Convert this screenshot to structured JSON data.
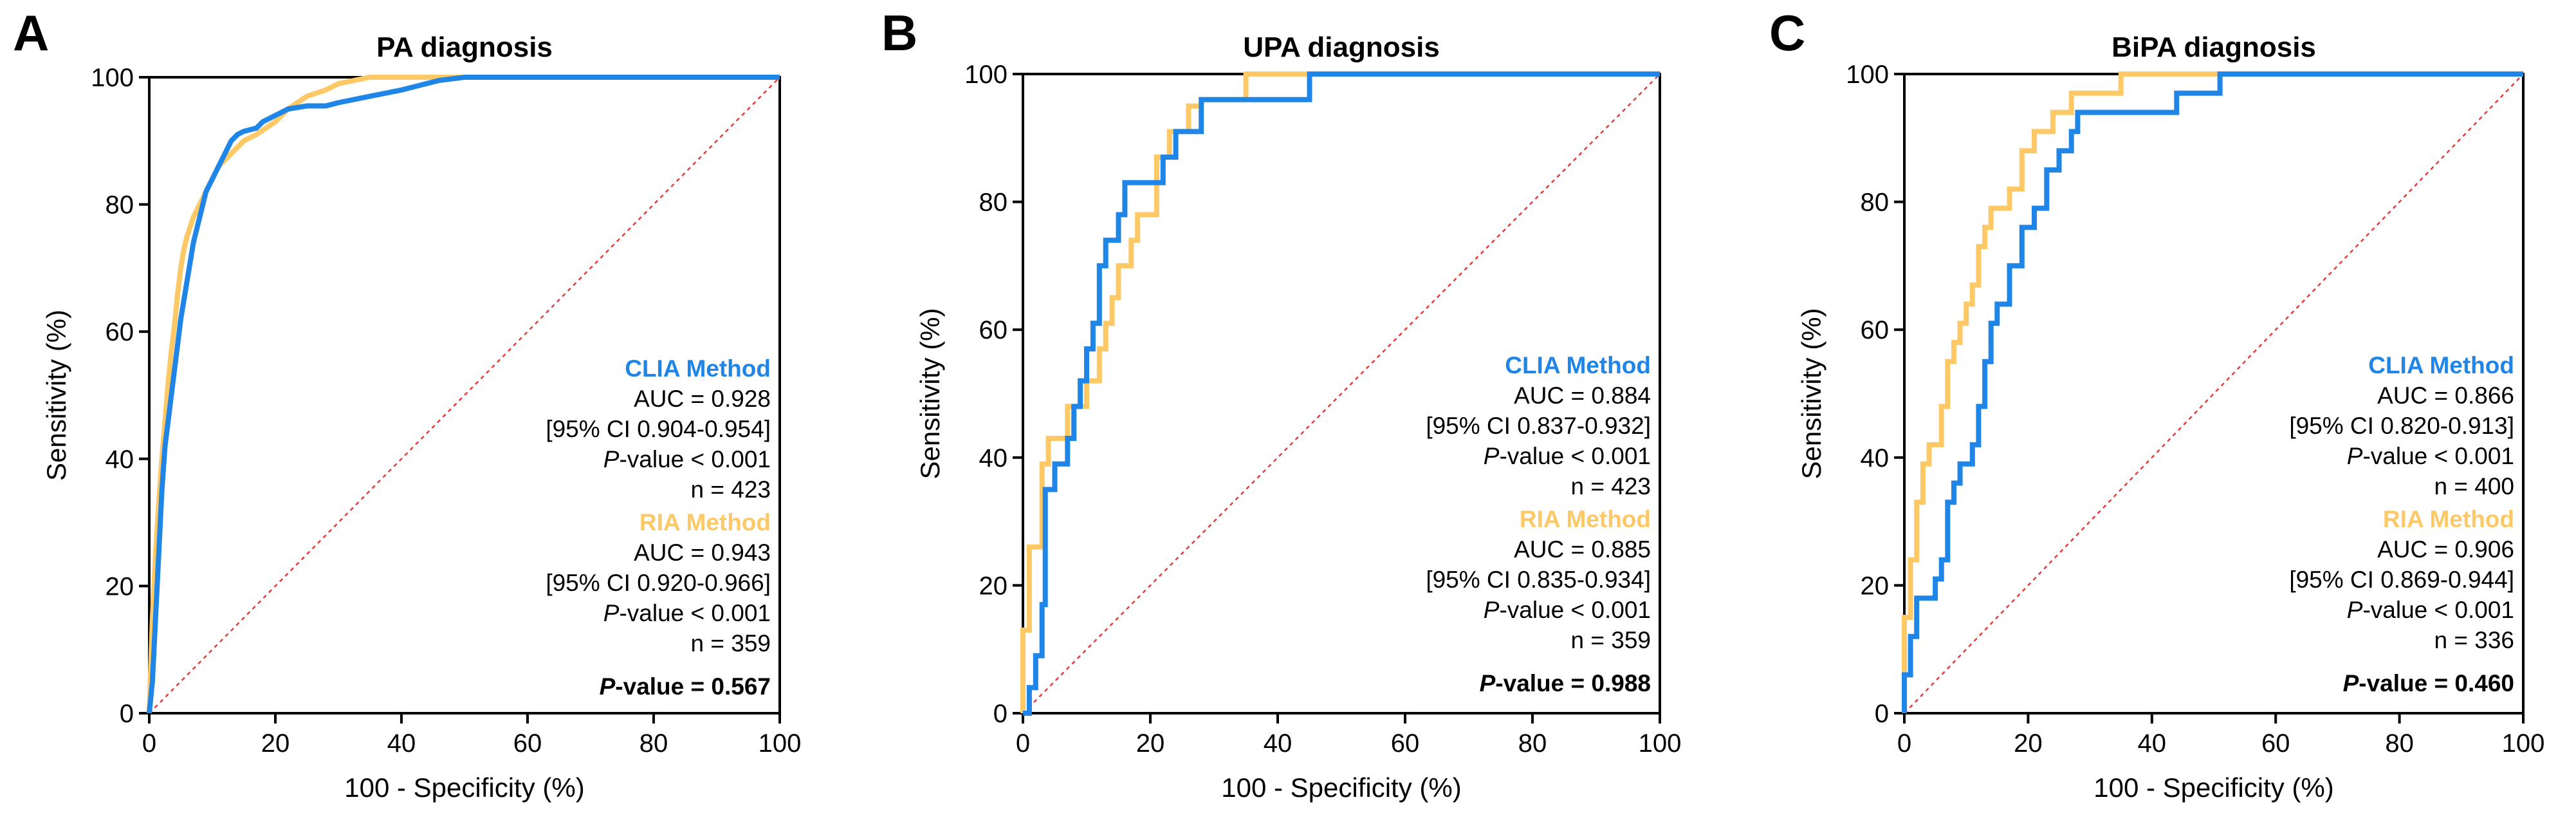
{
  "colors": {
    "clia": "#1f86e8",
    "ria": "#fdc866",
    "diagonal": "#e63b3b",
    "axis": "#000000"
  },
  "chart_data": [
    {
      "type": "line",
      "panel_label": "A",
      "title": "PA diagnosis",
      "xlabel": "100 - Specificity (%)",
      "ylabel": "Sensitivity (%)",
      "xlim": [
        0,
        100
      ],
      "ylim": [
        0,
        100
      ],
      "xticks": [
        "0",
        "20",
        "40",
        "60",
        "80",
        "100"
      ],
      "yticks": [
        "0",
        "20",
        "40",
        "60",
        "80",
        "100"
      ],
      "grid": false,
      "series": [
        {
          "name": "CLIA Method",
          "x": [
            0,
            0.5,
            1,
            1.5,
            2,
            2.5,
            3,
            3.5,
            4,
            4.5,
            5,
            5.5,
            6,
            6.5,
            7,
            7.5,
            8,
            8.5,
            9,
            10,
            11,
            12,
            13,
            14,
            15,
            17,
            18,
            20,
            22,
            25,
            28,
            30,
            35,
            40,
            46,
            50,
            60,
            80,
            100
          ],
          "y": [
            0,
            5,
            15,
            25,
            35,
            42,
            46,
            50,
            54,
            58,
            62,
            65,
            68,
            71,
            74,
            76,
            78,
            80,
            82,
            84,
            86,
            88,
            90,
            91,
            91.5,
            92,
            93,
            94,
            95,
            95.5,
            95.5,
            96,
            97,
            98,
            99.5,
            100,
            100,
            100,
            100
          ]
        },
        {
          "name": "RIA Method",
          "x": [
            0,
            0.5,
            1,
            1.5,
            2,
            2.5,
            3,
            3.5,
            4,
            4.5,
            5,
            5.5,
            6,
            7,
            8,
            9,
            10,
            11,
            12,
            14,
            15,
            17,
            20,
            22,
            25,
            28,
            30,
            35,
            40,
            50,
            60,
            80,
            100
          ],
          "y": [
            0,
            15,
            25,
            33,
            40,
            46,
            52,
            57,
            61,
            66,
            70,
            73,
            75,
            78,
            80,
            82,
            84,
            86,
            87,
            89,
            90,
            91,
            93,
            95,
            97,
            98,
            99,
            100,
            100,
            100,
            100,
            100,
            100
          ]
        }
      ],
      "diagonal": {
        "x": [
          0,
          100
        ],
        "y": [
          0,
          100
        ]
      },
      "annotations": {
        "clia": {
          "header": "CLIA Method",
          "auc": "AUC = 0.928",
          "ci": "[95% CI 0.904-0.954]",
          "p_italic": "P",
          "p_rest": "-value < 0.001",
          "n": "n = 423"
        },
        "ria": {
          "header": "RIA Method",
          "auc": "AUC = 0.943",
          "ci": "[95% CI 0.920-0.966]",
          "p_italic": "P",
          "p_rest": "-value < 0.001",
          "n": "n = 359"
        },
        "comparison": {
          "p_italic": "P",
          "p_rest": "-value = 0.567"
        }
      }
    },
    {
      "type": "line",
      "panel_label": "B",
      "title": "UPA diagnosis",
      "xlabel": "100 - Specificity (%)",
      "ylabel": "Sensitivity (%)",
      "xlim": [
        0,
        100
      ],
      "ylim": [
        0,
        100
      ],
      "xticks": [
        "0",
        "20",
        "40",
        "60",
        "80",
        "100"
      ],
      "yticks": [
        "0",
        "20",
        "40",
        "60",
        "80",
        "100"
      ],
      "grid": false,
      "series": [
        {
          "name": "CLIA Method",
          "x": [
            0,
            1,
            1,
            2,
            2,
            3,
            3,
            3.5,
            3.5,
            5,
            5,
            7,
            7,
            8,
            8,
            9,
            9,
            10,
            10,
            11,
            11,
            12,
            12,
            13,
            13,
            15,
            15,
            16,
            16,
            18,
            18,
            20,
            20,
            22,
            22,
            24,
            24,
            26,
            26,
            28,
            28,
            44,
            44,
            45,
            45,
            100
          ],
          "y": [
            0,
            0,
            4,
            4,
            9,
            9,
            17,
            17,
            35,
            35,
            39,
            39,
            43,
            43,
            48,
            48,
            52,
            52,
            57,
            57,
            61,
            61,
            70,
            70,
            74,
            74,
            78,
            78,
            83,
            83,
            83,
            83,
            83,
            83,
            87,
            87,
            91,
            91,
            91,
            91,
            96,
            96,
            96,
            96,
            100,
            100
          ]
        },
        {
          "name": "RIA Method",
          "x": [
            0,
            0,
            1,
            1,
            3,
            3,
            4,
            4,
            6,
            6,
            7,
            7,
            8,
            8,
            9,
            9,
            10,
            10,
            12,
            12,
            13,
            13,
            14,
            14,
            15,
            15,
            17,
            17,
            18,
            18,
            21,
            21,
            23,
            23,
            26,
            26,
            28,
            28,
            35,
            35,
            46,
            46,
            100
          ],
          "y": [
            0,
            13,
            13,
            26,
            26,
            39,
            39,
            43,
            43,
            43,
            43,
            48,
            48,
            48,
            48,
            48,
            48,
            52,
            52,
            57,
            57,
            61,
            61,
            65,
            65,
            70,
            70,
            74,
            74,
            78,
            78,
            87,
            87,
            91,
            91,
            95,
            95,
            96,
            96,
            100,
            100,
            100,
            100
          ]
        }
      ],
      "diagonal": {
        "x": [
          0,
          100
        ],
        "y": [
          0,
          100
        ]
      },
      "annotations": {
        "clia": {
          "header": "CLIA Method",
          "auc": "AUC = 0.884",
          "ci": "[95% CI 0.837-0.932]",
          "p_italic": "P",
          "p_rest": "-value < 0.001",
          "n": "n = 423"
        },
        "ria": {
          "header": "RIA Method",
          "auc": "AUC = 0.885",
          "ci": "[95% CI 0.835-0.934]",
          "p_italic": "P",
          "p_rest": "-value < 0.001",
          "n": "n = 359"
        },
        "comparison": {
          "p_italic": "P",
          "p_rest": "-value = 0.988"
        }
      }
    },
    {
      "type": "line",
      "panel_label": "C",
      "title": "BiPA diagnosis",
      "xlabel": "100 - Specificity (%)",
      "ylabel": "Sensitivity (%)",
      "xlim": [
        0,
        100
      ],
      "ylim": [
        0,
        100
      ],
      "xticks": [
        "0",
        "20",
        "40",
        "60",
        "80",
        "100"
      ],
      "yticks": [
        "0",
        "20",
        "40",
        "60",
        "80",
        "100"
      ],
      "grid": false,
      "series": [
        {
          "name": "CLIA Method",
          "x": [
            0,
            0,
            1,
            1,
            2,
            2,
            5,
            5,
            6,
            6,
            7,
            7,
            8,
            8,
            9,
            9,
            11,
            11,
            12,
            12,
            13,
            13,
            14,
            14,
            15,
            15,
            17,
            17,
            19,
            19,
            21,
            21,
            23,
            23,
            25,
            25,
            27,
            27,
            28,
            28,
            30,
            30,
            40,
            40,
            44,
            44,
            50,
            50,
            51,
            51,
            100
          ],
          "y": [
            0,
            6,
            6,
            12,
            12,
            18,
            18,
            21,
            21,
            24,
            24,
            33,
            33,
            36,
            36,
            39,
            39,
            42,
            42,
            48,
            48,
            55,
            55,
            61,
            61,
            64,
            64,
            70,
            70,
            76,
            76,
            79,
            79,
            85,
            85,
            88,
            88,
            91,
            91,
            94,
            94,
            94,
            94,
            94,
            94,
            97,
            97,
            97,
            97,
            100,
            100
          ]
        },
        {
          "name": "RIA Method",
          "x": [
            0,
            0,
            1,
            1,
            2,
            2,
            3,
            3,
            4,
            4,
            5,
            5,
            6,
            6,
            7,
            7,
            8,
            8,
            9,
            9,
            10,
            10,
            11,
            11,
            12,
            12,
            13,
            13,
            14,
            14,
            16,
            16,
            17,
            17,
            19,
            19,
            21,
            21,
            24,
            24,
            27,
            27,
            30,
            30,
            35,
            35,
            100
          ],
          "y": [
            0,
            15,
            15,
            24,
            24,
            33,
            33,
            39,
            39,
            42,
            42,
            42,
            42,
            48,
            48,
            55,
            55,
            58,
            58,
            61,
            61,
            64,
            64,
            67,
            67,
            73,
            73,
            76,
            76,
            79,
            79,
            79,
            79,
            82,
            82,
            88,
            88,
            91,
            91,
            94,
            94,
            97,
            97,
            97,
            97,
            100,
            100
          ]
        }
      ],
      "diagonal": {
        "x": [
          0,
          100
        ],
        "y": [
          0,
          100
        ]
      },
      "annotations": {
        "clia": {
          "header": "CLIA Method",
          "auc": "AUC = 0.866",
          "ci": "[95% CI 0.820-0.913]",
          "p_italic": "P",
          "p_rest": "-value < 0.001",
          "n": "n = 400"
        },
        "ria": {
          "header": "RIA Method",
          "auc": "AUC = 0.906",
          "ci": "[95% CI 0.869-0.944]",
          "p_italic": "P",
          "p_rest": "-value < 0.001",
          "n": "n = 336"
        },
        "comparison": {
          "p_italic": "P",
          "p_rest": "-value = 0.460"
        }
      }
    }
  ]
}
